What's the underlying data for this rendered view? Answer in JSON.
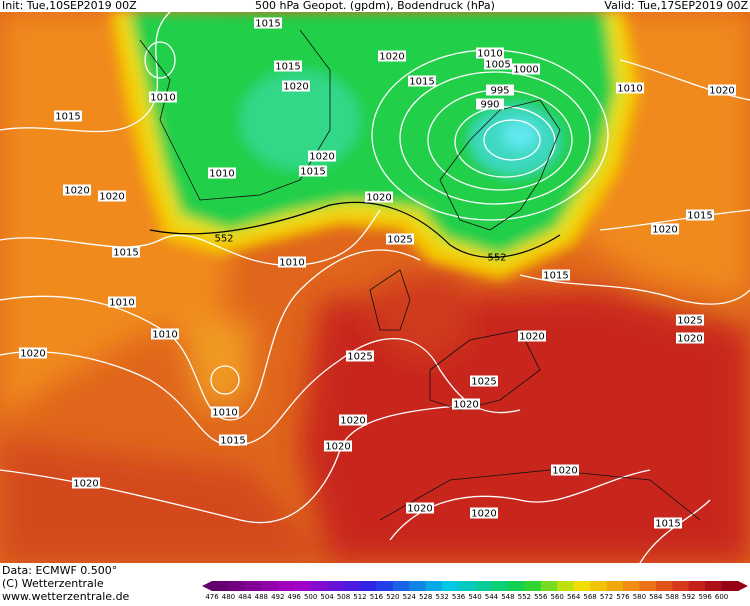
{
  "header": {
    "init": "Init: Tue,10SEP2019 00Z",
    "title": "500 hPa Geopot. (gpdm), Bodendruck (hPa)",
    "valid": "Valid: Tue,17SEP2019 00Z"
  },
  "isobar_labels": [
    1015,
    1015,
    1020,
    1010,
    1015,
    1020,
    1015,
    1010,
    1005,
    1000,
    995,
    990,
    1010,
    1020,
    1020,
    1010,
    1015,
    1020,
    1020,
    1020,
    1015,
    1020,
    1015,
    1010,
    1025,
    1015,
    1010,
    1010,
    1025,
    1020,
    1020,
    1020,
    1025,
    1025,
    1020,
    1010,
    1020,
    1015,
    1020,
    1020,
    1020,
    1020,
    1020,
    1015
  ],
  "contour_labels": [
    552,
    552
  ],
  "footer": {
    "data": "Data: ECMWF  0.500°",
    "copyright": "(C) Wetterzentrale",
    "url": "www.wetterzentrale.de"
  },
  "colorbar": {
    "labels": [
      476,
      480,
      484,
      488,
      492,
      496,
      500,
      504,
      508,
      512,
      516,
      520,
      524,
      528,
      532,
      536,
      540,
      544,
      548,
      552,
      556,
      560,
      564,
      568,
      572,
      576,
      580,
      584,
      588,
      592,
      596,
      600
    ]
  }
}
